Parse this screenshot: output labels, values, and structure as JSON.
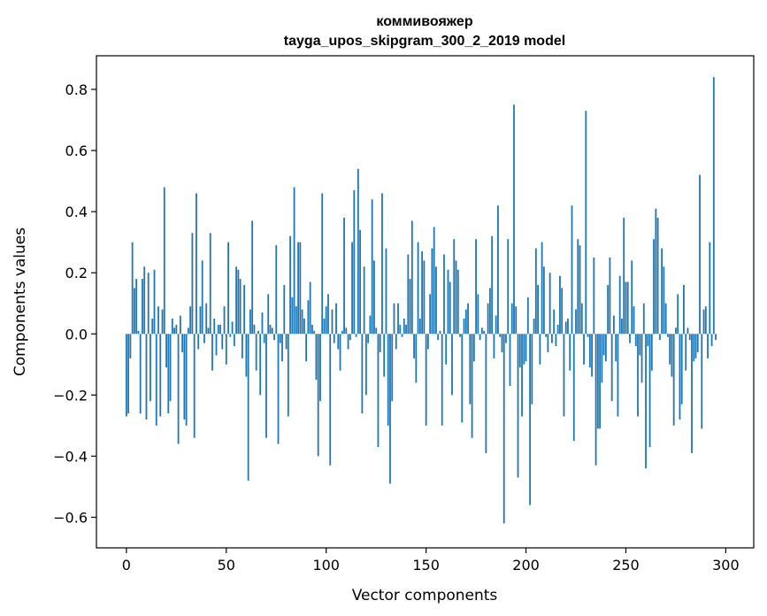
{
  "chart_data": {
    "type": "bar",
    "title": "коммивояжер",
    "subtitle": "tayga_upos_skipgram_300_2_2019 model",
    "xlabel": "Vector components",
    "ylabel": "Components values",
    "xlim": [
      -15,
      314
    ],
    "ylim": [
      -0.7,
      0.91
    ],
    "xticks": [
      0,
      50,
      100,
      150,
      200,
      250,
      300
    ],
    "yticks": [
      -0.6,
      -0.4,
      -0.2,
      0.0,
      0.2,
      0.4,
      0.6,
      0.8
    ],
    "ytick_labels": [
      "−0.6",
      "−0.4",
      "−0.2",
      "0.0",
      "0.2",
      "0.4",
      "0.6",
      "0.8"
    ],
    "grid": false,
    "bar_color": "#1f77b4",
    "values": [
      -0.27,
      -0.26,
      -0.08,
      0.3,
      0.15,
      0.18,
      0.01,
      -0.26,
      0.18,
      0.22,
      -0.28,
      0.2,
      -0.22,
      0.05,
      0.21,
      -0.3,
      0.09,
      -0.27,
      0.08,
      0.48,
      -0.11,
      -0.26,
      -0.22,
      0.05,
      0.02,
      0.03,
      -0.36,
      0.06,
      -0.06,
      -0.28,
      -0.3,
      0.02,
      0.09,
      0.33,
      -0.34,
      0.46,
      -0.05,
      0.09,
      0.24,
      -0.03,
      0.1,
      0.02,
      0.33,
      -0.12,
      0.05,
      -0.07,
      0.03,
      0.03,
      -0.05,
      0.09,
      -0.1,
      0.3,
      -0.01,
      0.04,
      -0.04,
      0.22,
      0.21,
      0.18,
      -0.08,
      0.16,
      -0.14,
      -0.48,
      0.08,
      0.37,
      0.03,
      -0.12,
      0.01,
      -0.2,
      0.07,
      -0.03,
      -0.34,
      0.13,
      0.03,
      0.02,
      -0.02,
      0.29,
      -0.36,
      -0.03,
      -0.09,
      0.16,
      -0.05,
      -0.27,
      0.32,
      0.12,
      0.48,
      0.09,
      0.3,
      0.3,
      0.08,
      0.05,
      -0.09,
      0.11,
      0.17,
      0.03,
      0.01,
      -0.15,
      -0.4,
      -0.22,
      0.46,
      0.05,
      0.09,
      0.13,
      -0.43,
      0.08,
      -0.03,
      0.1,
      -0.05,
      -0.12,
      0.01,
      0.38,
      0.02,
      -0.05,
      -0.02,
      0.3,
      0.47,
      -0.01,
      0.54,
      0.34,
      -0.26,
      0.22,
      -0.2,
      -0.03,
      0.06,
      0.44,
      0.24,
      0.02,
      -0.37,
      -0.06,
      0.46,
      -0.14,
      0.28,
      -0.3,
      -0.49,
      -0.22,
      0.1,
      -0.05,
      0.1,
      0.03,
      -0.01,
      0.05,
      0.03,
      0.26,
      0.18,
      0.37,
      -0.08,
      -0.16,
      0.3,
      0.05,
      0.27,
      0.24,
      -0.3,
      -0.05,
      0.13,
      0.28,
      0.35,
      0.22,
      -0.02,
      0.01,
      -0.3,
      0.26,
      -0.1,
      0.21,
      0.17,
      -0.2,
      0.31,
      0.24,
      0.21,
      -0.01,
      -0.29,
      0.05,
      0.08,
      0.1,
      -0.23,
      -0.34,
      -0.09,
      0.31,
      0.13,
      -0.02,
      0.02,
      0.01,
      -0.39,
      0.1,
      0.15,
      0.32,
      -0.08,
      0.06,
      0.42,
      -0.01,
      -0.06,
      -0.62,
      -0.03,
      0.31,
      -0.17,
      0.1,
      0.75,
      0.09,
      -0.47,
      -0.11,
      -0.27,
      -0.1,
      -0.09,
      0.12,
      -0.56,
      -0.23,
      0.05,
      0.28,
      0.16,
      -0.1,
      0.3,
      0.22,
      -0.01,
      -0.06,
      0.2,
      -0.03,
      0.08,
      -0.04,
      0.03,
      0.19,
      0.15,
      -0.27,
      0.04,
      0.05,
      -0.12,
      0.42,
      -0.35,
      0.08,
      0.31,
      0.29,
      0.1,
      -0.1,
      0.73,
      -0.01,
      -0.11,
      -0.14,
      0.25,
      -0.43,
      -0.31,
      -0.31,
      -0.16,
      -0.07,
      -0.09,
      0.16,
      0.25,
      -0.22,
      0.06,
      -0.09,
      -0.27,
      0.19,
      0.05,
      0.38,
      0.17,
      0.17,
      -0.03,
      0.24,
      0.09,
      -0.04,
      -0.27,
      -0.07,
      -0.16,
      0.1,
      -0.44,
      -0.04,
      -0.37,
      -0.12,
      0.31,
      0.41,
      0.38,
      -0.02,
      0.28,
      0.22,
      0.1,
      -0.01,
      -0.1,
      -0.14,
      -0.3,
      0.02,
      0.13,
      -0.28,
      -0.23,
      0.16,
      -0.12,
      0.02,
      -0.02,
      -0.39,
      -0.09,
      -0.08,
      -0.06,
      0.52,
      -0.31,
      0.08,
      0.09,
      -0.08,
      0.3,
      -0.04,
      0.84,
      -0.02,
      0.0,
      0.0,
      0.0,
      0.0
    ]
  }
}
